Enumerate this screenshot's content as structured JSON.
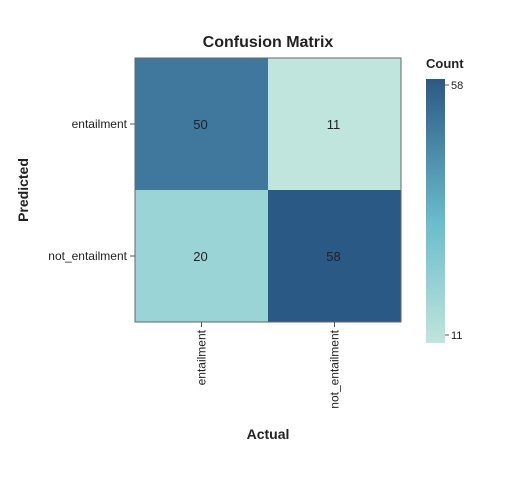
{
  "chart_data": {
    "type": "heatmap",
    "title": "Confusion Matrix",
    "xlabel": "Actual",
    "ylabel": "Predicted",
    "x_categories": [
      "entailment",
      "not_entailment"
    ],
    "y_categories": [
      "entailment",
      "not_entailment"
    ],
    "values": [
      [
        50,
        11
      ],
      [
        20,
        58
      ]
    ],
    "legend": {
      "title": "Count",
      "min": 11,
      "max": 58,
      "min_label": "11",
      "max_label": "58"
    },
    "colors": {
      "low": "#bfe5dc",
      "mid": "#6bbdcd",
      "high": "#2b5986",
      "border": "#666666"
    }
  }
}
